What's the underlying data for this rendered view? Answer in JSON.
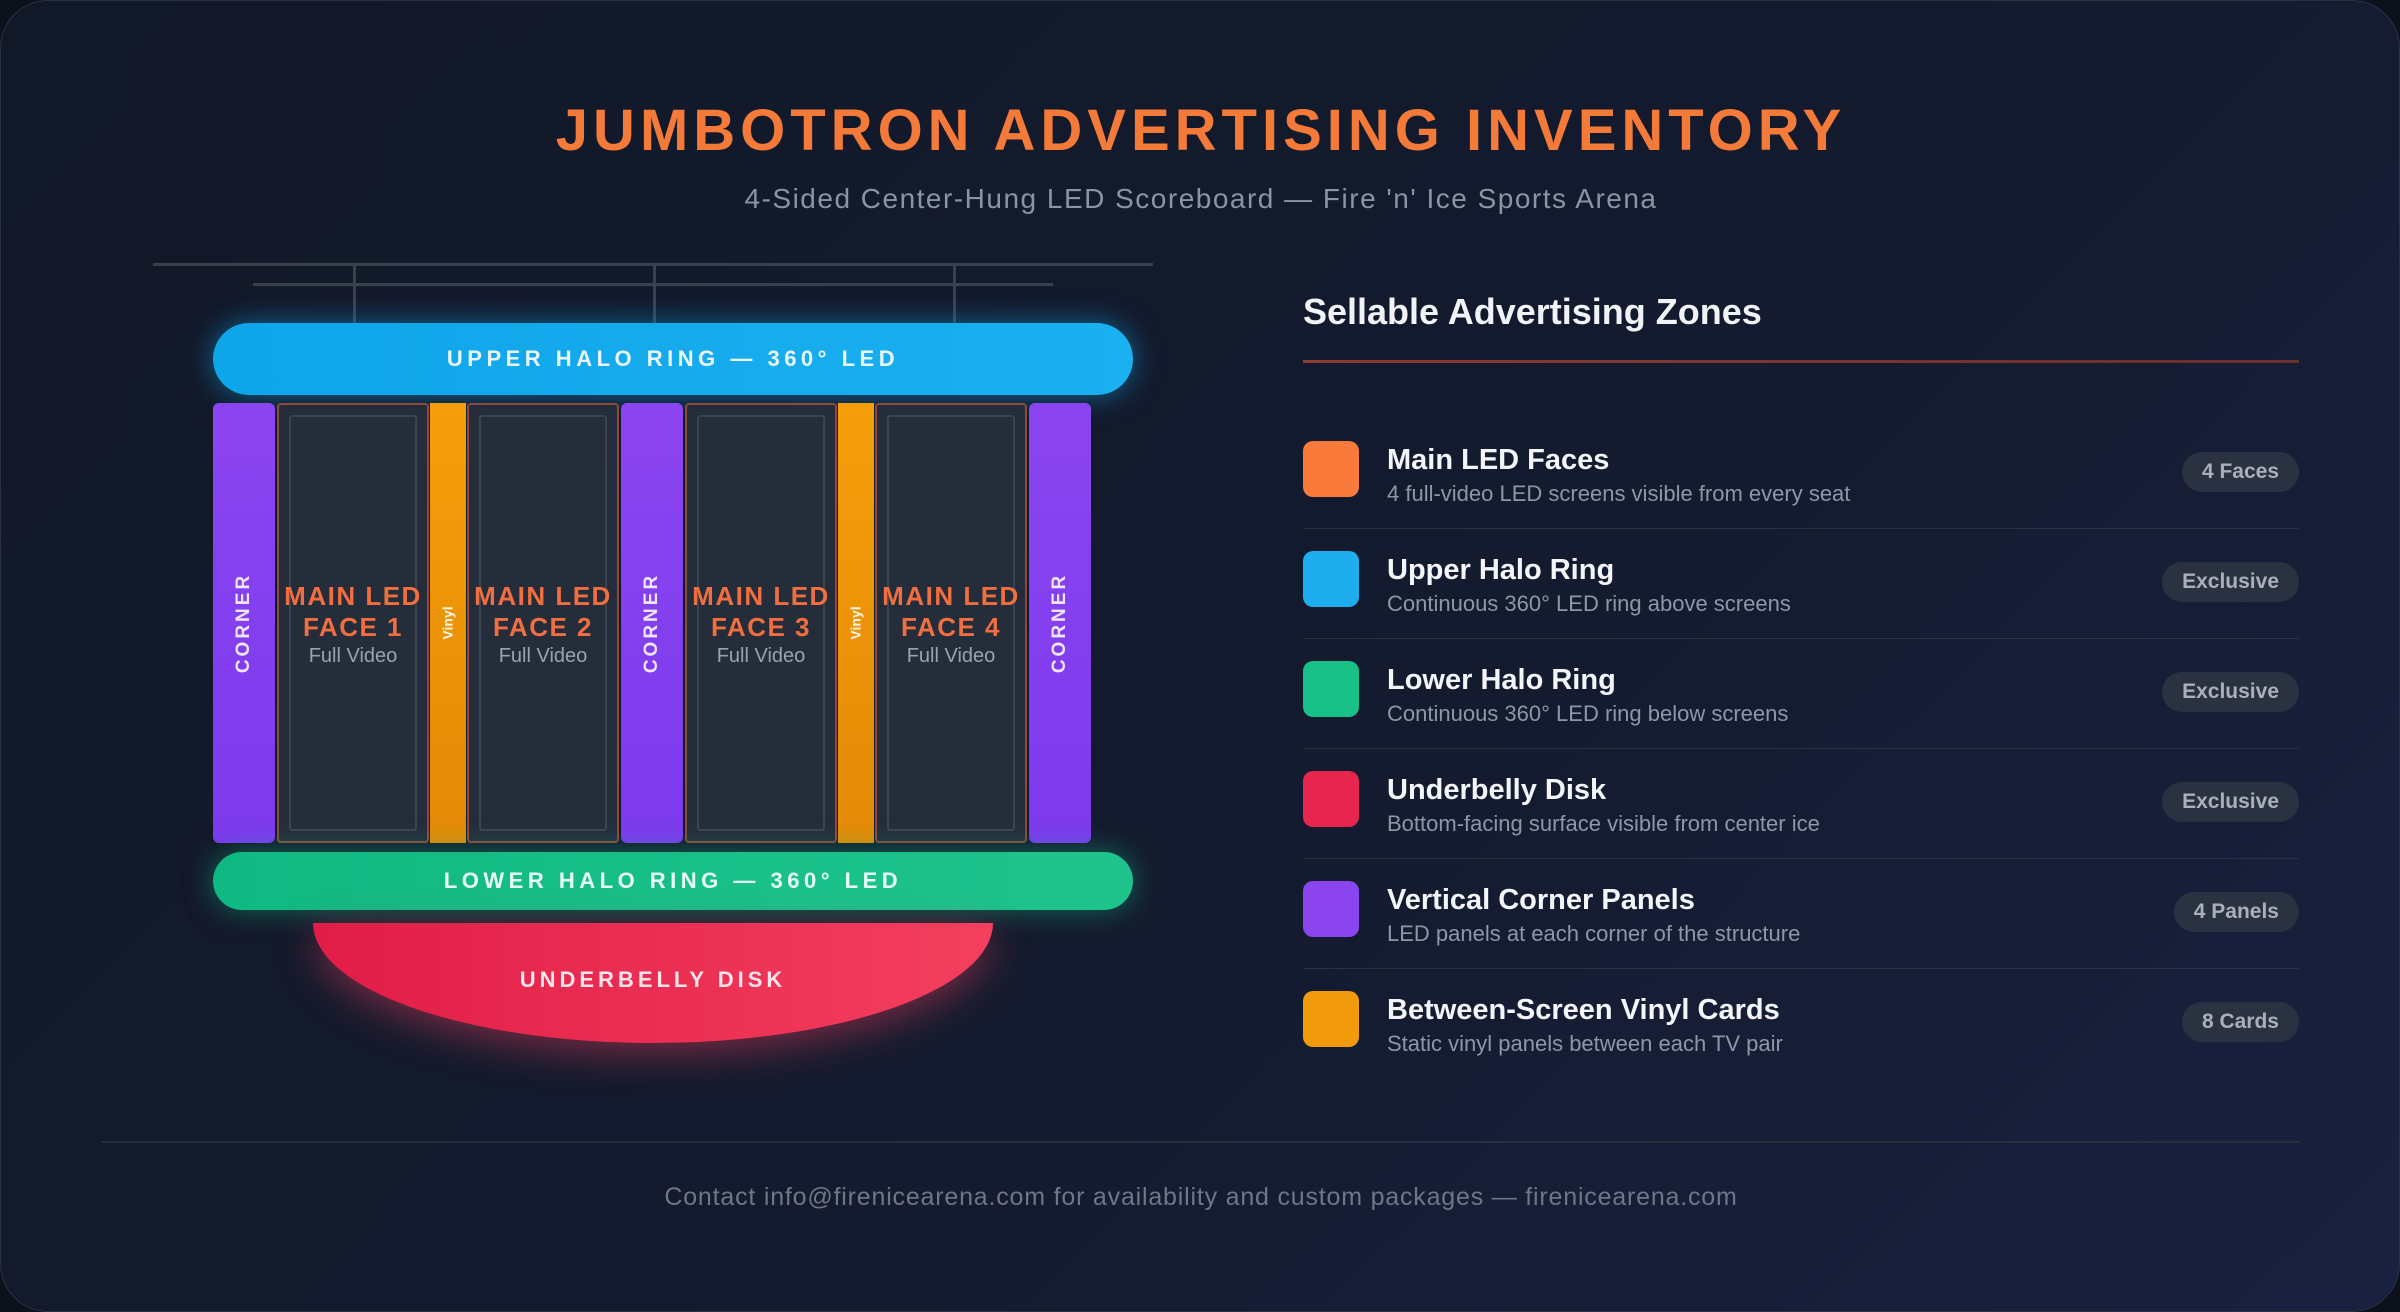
{
  "header": {
    "title": "JUMBOTRON ADVERTISING INVENTORY",
    "subtitle": "4-Sided Center-Hung LED Scoreboard — Fire 'n' Ice Sports Arena"
  },
  "diagram": {
    "upper_halo": "UPPER HALO RING — 360° LED",
    "lower_halo": "LOWER HALO RING — 360° LED",
    "underbelly": "UNDERBELLY DISK",
    "corner_label": "CORNER",
    "vinyl_label": "Vinyl",
    "faces": [
      {
        "label": "MAIN LED\nFACE 1",
        "sub": "Full Video"
      },
      {
        "label": "MAIN LED\nFACE 2",
        "sub": "Full Video"
      },
      {
        "label": "MAIN LED\nFACE 3",
        "sub": "Full Video"
      },
      {
        "label": "MAIN LED\nFACE 4",
        "sub": "Full Video"
      }
    ]
  },
  "zones": {
    "title": "Sellable Advertising Zones",
    "items": [
      {
        "name": "Main LED Faces",
        "desc": "4 full-video LED screens visible from every seat",
        "badge": "4 Faces",
        "color": "#f97a3a"
      },
      {
        "name": "Upper Halo Ring",
        "desc": "Continuous 360° LED ring above screens",
        "badge": "Exclusive",
        "color": "#1eaeed"
      },
      {
        "name": "Lower Halo Ring",
        "desc": "Continuous 360° LED ring below screens",
        "badge": "Exclusive",
        "color": "#19c088"
      },
      {
        "name": "Underbelly Disk",
        "desc": "Bottom-facing surface visible from center ice",
        "badge": "Exclusive",
        "color": "#e8254f"
      },
      {
        "name": "Vertical Corner Panels",
        "desc": "LED panels at each corner of the structure",
        "badge": "4 Panels",
        "color": "#8b45f0"
      },
      {
        "name": "Between-Screen Vinyl Cards",
        "desc": "Static vinyl panels between each TV pair",
        "badge": "8 Cards",
        "color": "#f09a0c"
      }
    ]
  },
  "footer": {
    "text": "Contact info@firenicearena.com for availability and custom packages — firenicearena.com"
  }
}
